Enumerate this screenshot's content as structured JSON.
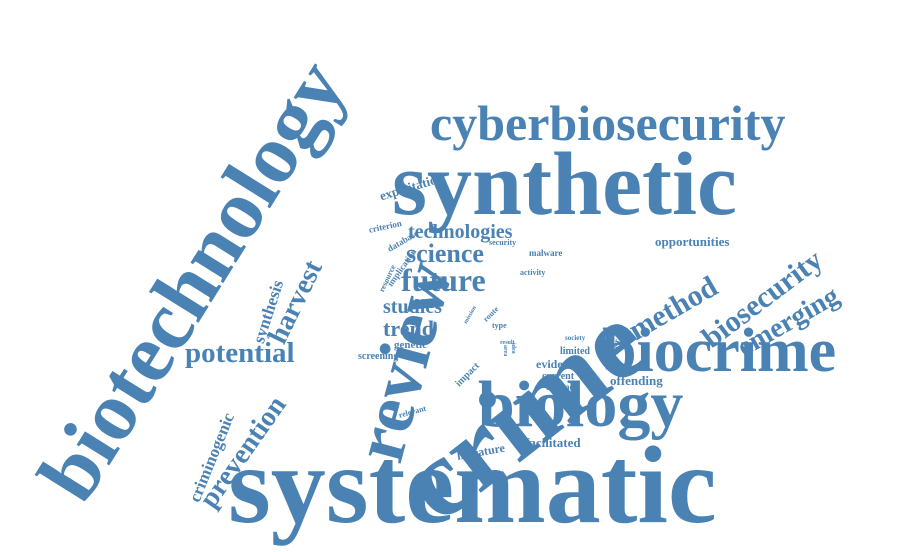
{
  "color": "#4a82b4",
  "words": {
    "systematic": "systematic",
    "crime": "crime",
    "synthetic": "synthetic",
    "biotechnology": "biotechnology",
    "biocrime": "biocrime",
    "biology": "biology",
    "review": "review",
    "cyberbiosecurity": "cyberbiosecurity",
    "biosecurity": "biosecurity",
    "emerging": "emerging",
    "method": "method",
    "future": "future",
    "science": "science",
    "potential": "potential",
    "prevention": "prevention",
    "harvest": "harvest",
    "technologies": "technologies",
    "trend": "trend",
    "studies": "studies",
    "criminogenic": "criminogenic",
    "synthesis": "synthesis",
    "opportunities": "opportunities",
    "exploitation": "exploitation",
    "offending": "offending",
    "facilitated": "facilitated",
    "literature": "literature",
    "evidence": "evidence",
    "limited": "limited",
    "current": "current",
    "common": "common",
    "genetic": "genetic",
    "screening": "screening",
    "impact": "impact",
    "relevant": "relevant",
    "criterion": "criterion",
    "database": "database",
    "implication": "implication",
    "resource": "resource",
    "security": "security",
    "malware": "malware",
    "activity": "activity",
    "type": "type",
    "route": "route",
    "society": "society",
    "offender": "offender",
    "result": "result",
    "mission": "mission",
    "area": "area",
    "idea": "idea"
  }
}
